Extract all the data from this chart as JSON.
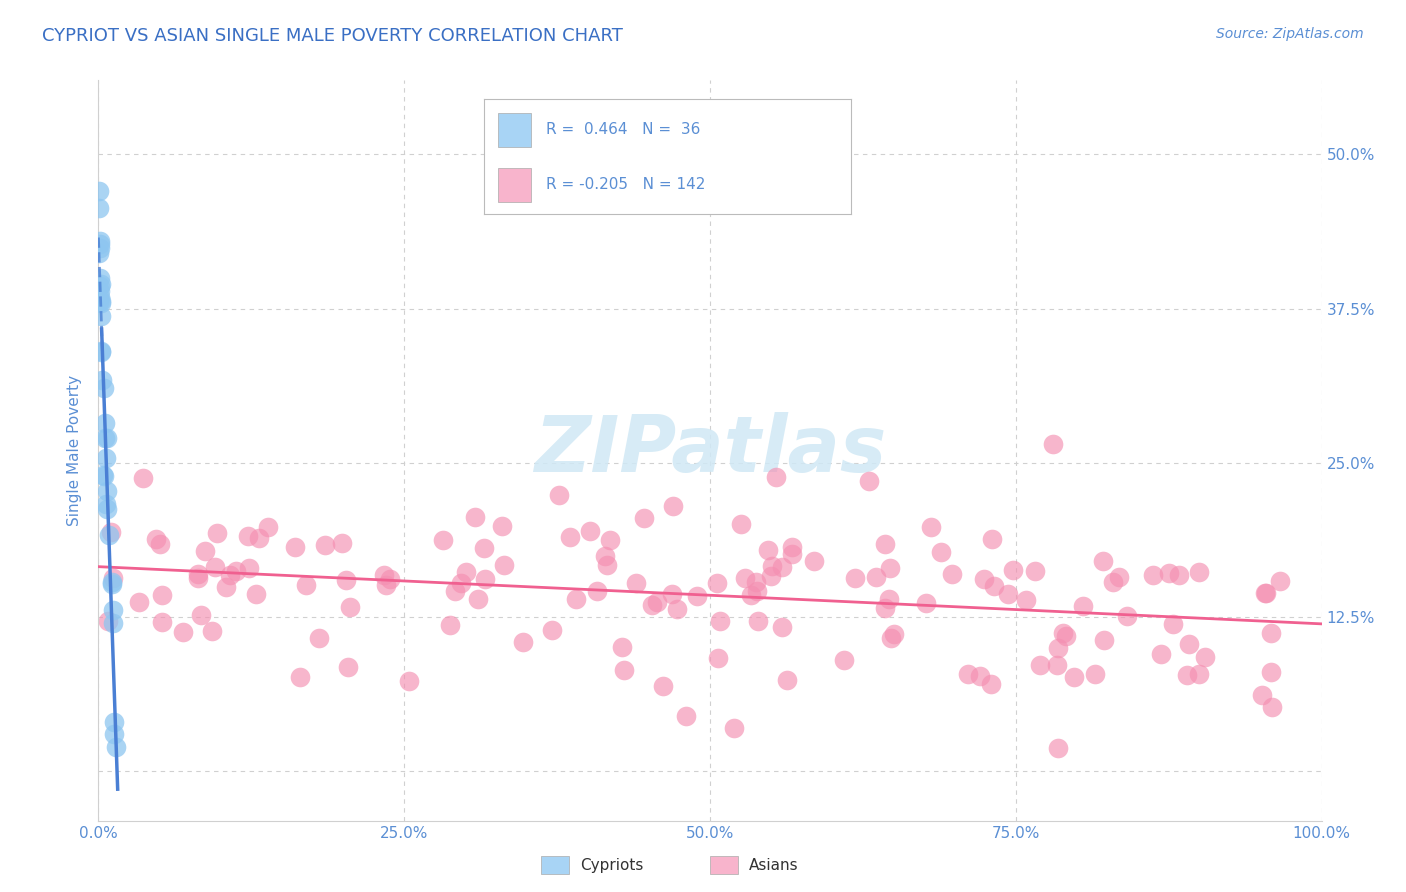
{
  "title": "CYPRIOT VS ASIAN SINGLE MALE POVERTY CORRELATION CHART",
  "source": "Source: ZipAtlas.com",
  "ylabel": "Single Male Poverty",
  "xlim": [
    0,
    1.0
  ],
  "ylim": [
    -0.04,
    0.56
  ],
  "xticks": [
    0.0,
    0.25,
    0.5,
    0.75,
    1.0
  ],
  "xtick_labels": [
    "0.0%",
    "25.0%",
    "50.0%",
    "75.0%",
    "100.0%"
  ],
  "yticks": [
    0.0,
    0.125,
    0.25,
    0.375,
    0.5
  ],
  "ytick_labels_right": [
    "",
    "12.5%",
    "25.0%",
    "37.5%",
    "50.0%"
  ],
  "cypriot_color": "#8ec6f0",
  "asian_color": "#f48fb1",
  "reg_cypriot_color": "#4a7fd4",
  "reg_asian_color": "#f06090",
  "title_color": "#3a6fc4",
  "tick_color": "#5b8fd4",
  "source_color": "#5b8fd4",
  "watermark_color": "#d0e8f5",
  "background_color": "#ffffff",
  "grid_color": "#d0d0d0",
  "grid_dash": [
    4,
    4
  ],
  "legend_cyp_color": "#a8d4f5",
  "legend_asian_color": "#f8b4cc",
  "cyp_r": "0.464",
  "cyp_n": "36",
  "asian_r": "-0.205",
  "asian_n": "142"
}
